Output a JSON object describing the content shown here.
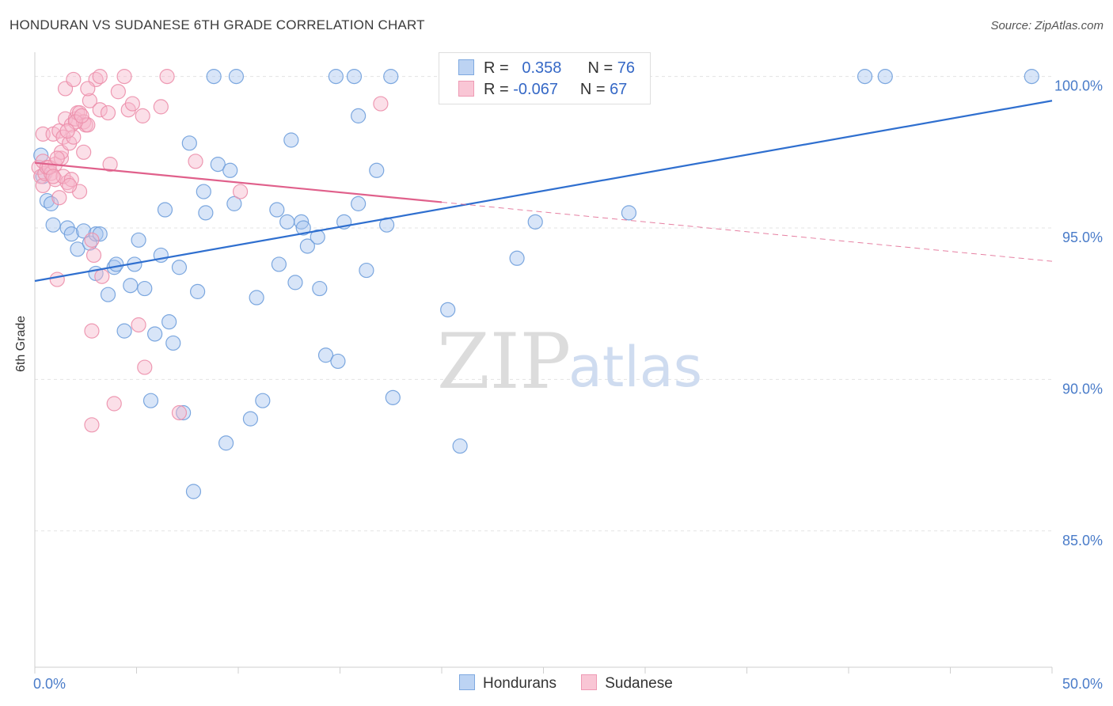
{
  "title": "HONDURAN VS SUDANESE 6TH GRADE CORRELATION CHART",
  "source": "Source: ZipAtlas.com",
  "watermark": {
    "zip": "ZIP",
    "atlas": "atlas"
  },
  "legend": {
    "r_label": "R =",
    "n_label": "N =",
    "rows": [
      {
        "r": "0.358",
        "n": "76"
      },
      {
        "r": "-0.067",
        "n": "67"
      }
    ]
  },
  "colors": {
    "hondurans_fill": "#a9c6ef",
    "hondurans_stroke": "#6f9fdc",
    "hondurans_line": "#2f6fcf",
    "sudanese_fill": "#f7b8cb",
    "sudanese_stroke": "#ec8fab",
    "sudanese_line": "#e0608b"
  },
  "chart_data": {
    "type": "scatter",
    "title": "HONDURAN VS SUDANESE 6TH GRADE CORRELATION CHART",
    "ylabel": "6th Grade",
    "xlabel": "",
    "xlim": [
      0,
      50
    ],
    "ylim": [
      80.5,
      100.8
    ],
    "x_ticks": [
      {
        "value": 0,
        "label": "0.0%"
      },
      {
        "value": 50,
        "label": "50.0%"
      }
    ],
    "y_ticks": [
      {
        "value": 100,
        "label": "100.0%"
      },
      {
        "value": 95,
        "label": "95.0%"
      },
      {
        "value": 90,
        "label": "90.0%"
      },
      {
        "value": 85,
        "label": "85.0%"
      }
    ],
    "grid": true,
    "legend_position": "top-center",
    "series": [
      {
        "name": "Hondurans",
        "r": 0.358,
        "n": 76,
        "trend": {
          "x0": 0,
          "y0": 93.25,
          "x1": 50,
          "y1": 99.2,
          "style": "solid"
        },
        "points": [
          [
            0.3,
            97.4
          ],
          [
            0.4,
            96.7
          ],
          [
            0.6,
            95.9
          ],
          [
            0.9,
            95.1
          ],
          [
            0.8,
            95.8
          ],
          [
            1.6,
            95.0
          ],
          [
            1.8,
            94.8
          ],
          [
            2.1,
            94.3
          ],
          [
            2.4,
            94.9
          ],
          [
            2.7,
            94.5
          ],
          [
            3.0,
            94.8
          ],
          [
            3.2,
            94.8
          ],
          [
            3.0,
            93.5
          ],
          [
            3.6,
            92.8
          ],
          [
            3.9,
            93.7
          ],
          [
            4.0,
            93.8
          ],
          [
            4.4,
            91.6
          ],
          [
            4.7,
            93.1
          ],
          [
            4.9,
            93.8
          ],
          [
            5.1,
            94.6
          ],
          [
            5.4,
            93.0
          ],
          [
            5.7,
            89.3
          ],
          [
            5.9,
            91.5
          ],
          [
            6.2,
            94.1
          ],
          [
            6.4,
            95.6
          ],
          [
            6.6,
            91.9
          ],
          [
            6.8,
            91.2
          ],
          [
            7.1,
            93.7
          ],
          [
            7.3,
            88.9
          ],
          [
            7.6,
            97.8
          ],
          [
            7.8,
            86.3
          ],
          [
            8.0,
            92.9
          ],
          [
            8.3,
            96.2
          ],
          [
            8.4,
            95.5
          ],
          [
            8.8,
            100.0
          ],
          [
            9.0,
            97.1
          ],
          [
            9.4,
            87.9
          ],
          [
            9.6,
            96.9
          ],
          [
            9.8,
            95.8
          ],
          [
            9.9,
            100.0
          ],
          [
            10.6,
            88.7
          ],
          [
            10.9,
            92.7
          ],
          [
            11.2,
            89.3
          ],
          [
            11.9,
            95.6
          ],
          [
            12.0,
            93.8
          ],
          [
            12.4,
            95.2
          ],
          [
            12.6,
            97.9
          ],
          [
            12.8,
            93.2
          ],
          [
            13.1,
            95.2
          ],
          [
            13.2,
            95.0
          ],
          [
            13.4,
            94.4
          ],
          [
            13.9,
            94.7
          ],
          [
            14.0,
            93.0
          ],
          [
            14.3,
            90.8
          ],
          [
            14.9,
            90.6
          ],
          [
            15.2,
            95.2
          ],
          [
            15.7,
            100.0
          ],
          [
            15.9,
            95.8
          ],
          [
            15.9,
            98.7
          ],
          [
            16.3,
            93.6
          ],
          [
            16.8,
            96.9
          ],
          [
            17.3,
            95.1
          ],
          [
            17.5,
            100.0
          ],
          [
            17.6,
            89.4
          ],
          [
            20.3,
            92.3
          ],
          [
            20.9,
            87.8
          ],
          [
            23.7,
            94.0
          ],
          [
            24.6,
            95.2
          ],
          [
            29.2,
            95.5
          ],
          [
            40.8,
            100.0
          ],
          [
            41.8,
            100.0
          ],
          [
            49.0,
            100.0
          ],
          [
            25.1,
            100.0
          ],
          [
            27.1,
            100.0
          ],
          [
            28.0,
            100.0
          ],
          [
            14.8,
            100.0
          ]
        ]
      },
      {
        "name": "Sudanese",
        "r": -0.067,
        "n": 67,
        "trend": {
          "x0": 0,
          "y0": 97.15,
          "x1": 20,
          "y1": 95.85,
          "style": "solid",
          "dashed_to": {
            "x": 50,
            "y": 93.9
          }
        },
        "points": [
          [
            0.2,
            97.0
          ],
          [
            0.3,
            96.7
          ],
          [
            0.4,
            96.4
          ],
          [
            0.4,
            98.1
          ],
          [
            0.4,
            97.2
          ],
          [
            0.5,
            96.8
          ],
          [
            0.6,
            97.0
          ],
          [
            0.8,
            96.8
          ],
          [
            0.9,
            98.1
          ],
          [
            1.0,
            97.1
          ],
          [
            1.0,
            96.6
          ],
          [
            1.1,
            93.3
          ],
          [
            1.2,
            96.0
          ],
          [
            1.2,
            98.2
          ],
          [
            1.3,
            97.3
          ],
          [
            1.4,
            98.0
          ],
          [
            1.5,
            98.6
          ],
          [
            1.6,
            96.5
          ],
          [
            1.4,
            96.7
          ],
          [
            1.8,
            96.6
          ],
          [
            1.3,
            97.5
          ],
          [
            1.5,
            99.6
          ],
          [
            1.7,
            97.8
          ],
          [
            1.8,
            98.4
          ],
          [
            1.9,
            98.0
          ],
          [
            1.9,
            99.9
          ],
          [
            2.0,
            98.6
          ],
          [
            2.1,
            98.8
          ],
          [
            2.2,
            98.8
          ],
          [
            2.2,
            96.2
          ],
          [
            2.4,
            97.5
          ],
          [
            2.4,
            98.5
          ],
          [
            2.5,
            98.4
          ],
          [
            2.6,
            98.4
          ],
          [
            2.7,
            99.2
          ],
          [
            2.8,
            94.6
          ],
          [
            2.8,
            91.6
          ],
          [
            2.8,
            88.5
          ],
          [
            2.9,
            94.1
          ],
          [
            3.0,
            99.9
          ],
          [
            3.2,
            98.9
          ],
          [
            3.2,
            100.0
          ],
          [
            3.3,
            93.4
          ],
          [
            3.6,
            98.8
          ],
          [
            3.9,
            89.2
          ],
          [
            4.1,
            99.5
          ],
          [
            4.4,
            100.0
          ],
          [
            4.6,
            98.9
          ],
          [
            4.8,
            99.1
          ],
          [
            5.1,
            91.8
          ],
          [
            5.3,
            98.7
          ],
          [
            5.4,
            90.4
          ],
          [
            6.2,
            99.0
          ],
          [
            6.5,
            100.0
          ],
          [
            7.1,
            88.9
          ],
          [
            7.9,
            97.2
          ],
          [
            10.1,
            96.2
          ],
          [
            17.0,
            99.1
          ],
          [
            0.7,
            97.0
          ],
          [
            1.1,
            97.3
          ],
          [
            2.0,
            98.5
          ],
          [
            2.3,
            98.7
          ],
          [
            1.6,
            98.2
          ],
          [
            0.9,
            96.7
          ],
          [
            1.7,
            96.4
          ],
          [
            2.6,
            99.6
          ],
          [
            3.7,
            97.1
          ]
        ]
      }
    ]
  },
  "bottom_legend": [
    "Hondurans",
    "Sudanese"
  ]
}
